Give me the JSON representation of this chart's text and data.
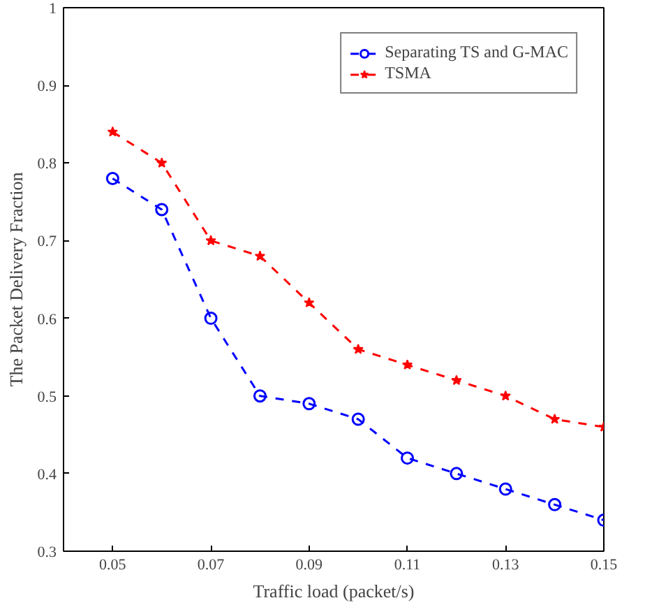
{
  "chart_data": {
    "type": "line",
    "xlabel": "Traffic load (packet/s)",
    "ylabel": "The Packet Delivery Fraction",
    "x": [
      0.05,
      0.06,
      0.07,
      0.08,
      0.09,
      0.1,
      0.11,
      0.12,
      0.13,
      0.14,
      0.15
    ],
    "series": [
      {
        "name": "Separating TS and G-MAC",
        "color": "#0000ff",
        "marker": "circle",
        "values": [
          0.78,
          0.74,
          0.6,
          0.5,
          0.49,
          0.47,
          0.42,
          0.4,
          0.38,
          0.36,
          0.34
        ]
      },
      {
        "name": "TSMA",
        "color": "#ff0000",
        "marker": "star",
        "values": [
          0.84,
          0.8,
          0.7,
          0.68,
          0.62,
          0.56,
          0.54,
          0.52,
          0.5,
          0.47,
          0.46
        ]
      }
    ],
    "xlim": [
      0.04,
      0.15
    ],
    "xticks": [
      0.05,
      0.07,
      0.09,
      0.11,
      0.13,
      0.15
    ],
    "ylim": [
      0.3,
      1
    ],
    "yticks": [
      0.3,
      0.4,
      0.5,
      0.6,
      0.7,
      0.8,
      0.9,
      1
    ],
    "grid": false,
    "legend": "top right",
    "line_style": "dashed"
  }
}
